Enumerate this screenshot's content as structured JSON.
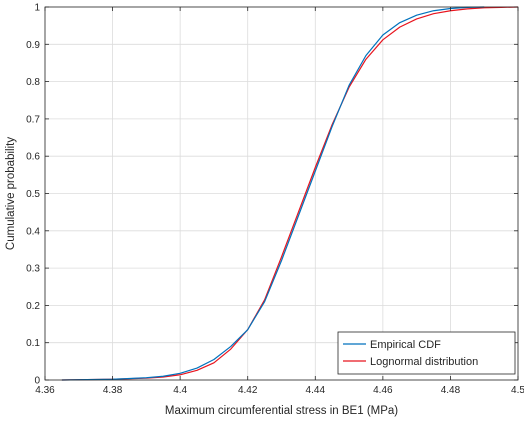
{
  "chart_data": {
    "type": "line",
    "xlabel": "Maximum circumferential stress in BE1 (MPa)",
    "ylabel": "Cumulative probability",
    "xlim": [
      4.36,
      4.5
    ],
    "ylim": [
      0,
      1
    ],
    "x_ticks": [
      "4.36",
      "4.38",
      "4.4",
      "4.42",
      "4.44",
      "4.46",
      "4.48",
      "4.5"
    ],
    "y_ticks": [
      "0",
      "0.1",
      "0.2",
      "0.3",
      "0.4",
      "0.5",
      "0.6",
      "0.7",
      "0.8",
      "0.9",
      "1"
    ],
    "grid": true,
    "legend_position": "bottom-right",
    "series": [
      {
        "name": "Empirical CDF",
        "color": "#0072BD",
        "x": [
          4.365,
          4.38,
          4.39,
          4.395,
          4.4,
          4.405,
          4.41,
          4.415,
          4.42,
          4.425,
          4.43,
          4.435,
          4.44,
          4.445,
          4.45,
          4.455,
          4.46,
          4.465,
          4.47,
          4.475,
          4.48,
          4.485,
          4.49
        ],
        "y": [
          0.0,
          0.002,
          0.006,
          0.01,
          0.018,
          0.032,
          0.055,
          0.09,
          0.135,
          0.21,
          0.32,
          0.44,
          0.56,
          0.68,
          0.79,
          0.87,
          0.925,
          0.958,
          0.978,
          0.99,
          0.996,
          0.999,
          1.0
        ]
      },
      {
        "name": "Lognormal distribution",
        "color": "#E8141E",
        "x": [
          4.365,
          4.38,
          4.39,
          4.395,
          4.4,
          4.405,
          4.41,
          4.415,
          4.42,
          4.425,
          4.43,
          4.435,
          4.44,
          4.445,
          4.45,
          4.455,
          4.46,
          4.465,
          4.47,
          4.475,
          4.48,
          4.485,
          4.49,
          4.495,
          4.5
        ],
        "y": [
          0.0,
          0.002,
          0.005,
          0.008,
          0.014,
          0.026,
          0.046,
          0.083,
          0.135,
          0.215,
          0.33,
          0.45,
          0.57,
          0.685,
          0.785,
          0.86,
          0.912,
          0.946,
          0.968,
          0.982,
          0.99,
          0.995,
          0.998,
          0.999,
          1.0
        ]
      }
    ]
  }
}
